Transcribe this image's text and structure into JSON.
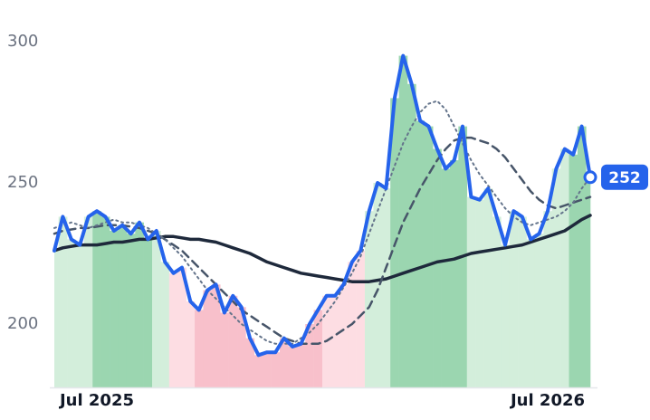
{
  "chart_data": {
    "type": "line",
    "categories": [
      null,
      null,
      null,
      null,
      null,
      "Jul 2025",
      null,
      null,
      null,
      null,
      null,
      null,
      null,
      null,
      null,
      null,
      null,
      null,
      null,
      null,
      null,
      null,
      null,
      null,
      null,
      null,
      null,
      null,
      null,
      null,
      null,
      null,
      null,
      null,
      null,
      null,
      null,
      null,
      null,
      null,
      null,
      null,
      null,
      null,
      null,
      null,
      null,
      null,
      null,
      null,
      null,
      null,
      null,
      null,
      null,
      null,
      null,
      null,
      "Jul 2026",
      null,
      null,
      null,
      null,
      null
    ],
    "ylim": [
      177.5,
      305
    ],
    "yticks": [
      200,
      250,
      300
    ],
    "fill_colors": [
      "#d3eedb",
      "#d3eedb",
      "#d3eedb",
      "#d3eedb",
      "#d3eedb",
      "#9bd6b0",
      "#9bd6b0",
      "#9bd6b0",
      "#9bd6b0",
      "#9bd6b0",
      "#9bd6b0",
      "#9bd6b0",
      "#d3eedb",
      "#d3eedb",
      "#fddde3",
      "#fddde3",
      "#fddde3",
      "#f8c0cb",
      "#f8c0cb",
      "#f8c0cb",
      "#f8c0cb",
      "#f8c0cb",
      "#f8c0cb",
      "#f8c0cb",
      "#f8c0cb",
      "#f8c0cb",
      "#f8c0cb",
      "#f8c0cb",
      "#f8c0cb",
      "#f8c0cb",
      "#f8c0cb",
      "#f8c0cb",
      "#fddde3",
      "#fddde3",
      "#fddde3",
      "#fddde3",
      "#fddde3",
      "#d3eedb",
      "#d3eedb",
      "#d3eedb",
      "#9bd6b0",
      "#9bd6b0",
      "#9bd6b0",
      "#9bd6b0",
      "#9bd6b0",
      "#9bd6b0",
      "#9bd6b0",
      "#9bd6b0",
      "#9bd6b0",
      "#d3eedb",
      "#d3eedb",
      "#d3eedb",
      "#d3eedb",
      "#d3eedb",
      "#d3eedb",
      "#d3eedb",
      "#d3eedb",
      "#d3eedb",
      "#d3eedb",
      "#d3eedb",
      "#d3eedb",
      "#9bd6b0",
      "#9bd6b0",
      "#9bd6b0"
    ],
    "series": [
      {
        "color": "#2563eb",
        "style": "solid",
        "width": 4,
        "values": [
          226,
          238,
          230,
          228,
          238,
          240,
          238,
          233,
          235,
          232,
          236,
          230,
          233,
          222,
          218,
          220,
          208,
          205,
          212,
          214,
          204,
          210,
          206,
          195,
          189,
          190,
          190,
          195,
          192,
          193,
          200,
          205,
          210,
          210,
          214,
          222,
          226,
          240,
          250,
          248,
          280,
          295,
          285,
          272,
          270,
          262,
          255,
          258,
          270,
          245,
          244,
          248,
          238,
          228,
          240,
          238,
          230,
          232,
          240,
          255,
          262,
          260,
          270,
          252
        ]
      },
      {
        "color": "#1e293b",
        "style": "solid",
        "width": 3.5,
        "values": [
          226,
          227,
          227.5,
          228,
          228,
          228,
          228.5,
          229,
          229,
          229.5,
          230,
          230,
          230.5,
          231,
          231,
          230.5,
          230,
          230,
          229.5,
          229,
          228,
          227,
          226,
          225,
          223.5,
          222,
          221,
          220,
          219,
          218,
          217.5,
          217,
          216.5,
          216,
          215.5,
          215,
          215,
          215,
          215.5,
          216,
          217,
          218,
          219,
          220,
          221,
          222,
          222.5,
          223,
          224,
          225,
          225.5,
          226,
          226.5,
          227,
          227.5,
          228,
          229,
          230,
          231,
          232,
          233,
          235,
          237,
          238.5
        ]
      },
      {
        "color": "#475569",
        "style": "dashed",
        "width": 2.5,
        "values": [
          232,
          233,
          233.5,
          234,
          234,
          234.5,
          235,
          235,
          235,
          234.5,
          234,
          233,
          232,
          230,
          228,
          226,
          223,
          220,
          217,
          214,
          211,
          208,
          205,
          203,
          201,
          199,
          197,
          195,
          194,
          193,
          193,
          193,
          194,
          196,
          198,
          200,
          203,
          206,
          212,
          220,
          228,
          236,
          242,
          248,
          253,
          258,
          262,
          265,
          266,
          266,
          265,
          264,
          262,
          259,
          255,
          251,
          247,
          244,
          242,
          241,
          242,
          243,
          244,
          245
        ]
      },
      {
        "color": "#64748b",
        "style": "dotted",
        "width": 2,
        "values": [
          234,
          235,
          236,
          235,
          234,
          235,
          236,
          237,
          236,
          236,
          235,
          234,
          232,
          230,
          227,
          224,
          220,
          216,
          212,
          209,
          206,
          203,
          200,
          198,
          196,
          194,
          193,
          193,
          193,
          195,
          197,
          200,
          204,
          208,
          213,
          218,
          224,
          232,
          240,
          248,
          256,
          264,
          270,
          275,
          278,
          279,
          276,
          270,
          264,
          258,
          253,
          249,
          245,
          241,
          238,
          236,
          235,
          236,
          237,
          238,
          240,
          243,
          248,
          252
        ]
      }
    ]
  }
}
